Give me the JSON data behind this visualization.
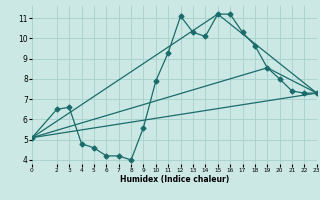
{
  "xlabel": "Humidex (Indice chaleur)",
  "ylabel": "",
  "bg_color": "#cce8e4",
  "line_color": "#1a6b6b",
  "grid_color": "#aad4d0",
  "xlim": [
    0,
    23
  ],
  "ylim": [
    3.8,
    11.6
  ],
  "yticks": [
    4,
    5,
    6,
    7,
    8,
    9,
    10,
    11
  ],
  "xticks": [
    0,
    2,
    3,
    4,
    5,
    6,
    7,
    8,
    9,
    10,
    11,
    12,
    13,
    14,
    15,
    16,
    17,
    18,
    19,
    20,
    21,
    22,
    23
  ],
  "lines": [
    {
      "x": [
        0,
        2,
        3,
        4,
        5,
        6,
        7,
        8,
        9,
        10,
        11,
        12,
        13,
        14,
        15,
        16,
        17,
        18,
        19,
        20,
        21,
        22,
        23
      ],
      "y": [
        5.1,
        6.5,
        6.6,
        4.8,
        4.6,
        4.2,
        4.2,
        4.0,
        5.6,
        7.9,
        9.3,
        11.1,
        10.3,
        10.1,
        11.2,
        11.2,
        10.3,
        9.65,
        8.55,
        8.0,
        7.4,
        7.3,
        7.3
      ],
      "marker": "D",
      "markersize": 2.5,
      "lw": 0.9
    },
    {
      "x": [
        0,
        23
      ],
      "y": [
        5.1,
        7.3
      ],
      "marker": null,
      "markersize": 0,
      "lw": 0.9
    },
    {
      "x": [
        0,
        19,
        23
      ],
      "y": [
        5.1,
        8.55,
        7.3
      ],
      "marker": null,
      "markersize": 0,
      "lw": 0.9
    },
    {
      "x": [
        0,
        15,
        23
      ],
      "y": [
        5.1,
        11.2,
        7.3
      ],
      "marker": null,
      "markersize": 0,
      "lw": 0.9
    }
  ]
}
